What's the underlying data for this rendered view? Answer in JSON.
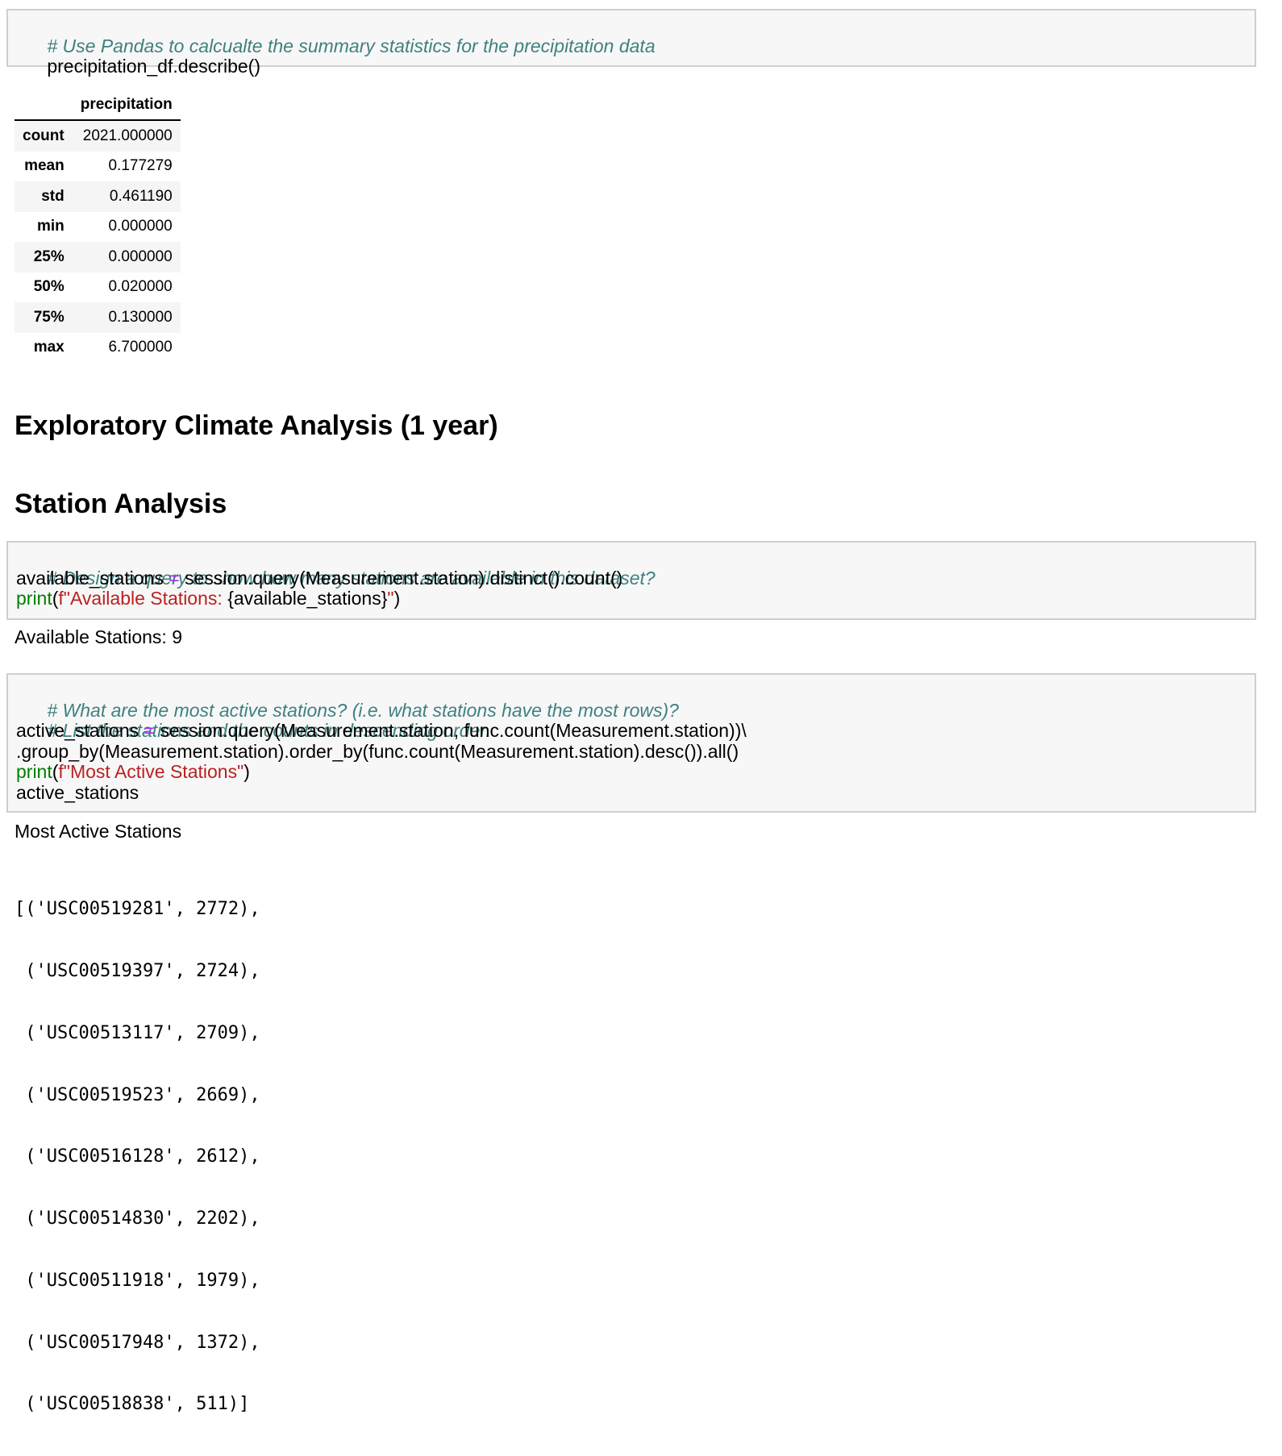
{
  "cell1": {
    "comment": "# Use Pandas to calcualte the summary statistics for the precipitation data",
    "code": "precipitation_df.describe()"
  },
  "describe_table": {
    "column_header": "precipitation",
    "rows": [
      {
        "label": "count",
        "value": "2021.000000"
      },
      {
        "label": "mean",
        "value": "0.177279"
      },
      {
        "label": "std",
        "value": "0.461190"
      },
      {
        "label": "min",
        "value": "0.000000"
      },
      {
        "label": "25%",
        "value": "0.000000"
      },
      {
        "label": "50%",
        "value": "0.020000"
      },
      {
        "label": "75%",
        "value": "0.130000"
      },
      {
        "label": "max",
        "value": "6.700000"
      }
    ]
  },
  "headings": {
    "exploratory": "Exploratory Climate Analysis (1 year)",
    "station": "Station Analysis"
  },
  "cell2": {
    "comment": "# Design a query to show how many stations are available in this dataset?",
    "line2_var": "available_stations",
    "line2_op": "=",
    "line2_rest": "session.query(Measurement.station).distinct().count()",
    "line3_fn": "print",
    "line3_open": "(",
    "line3_str_start": "f\"Available Stations: ",
    "line3_interp": "{available_stations}",
    "line3_str_end": "\"",
    "line3_close": ")",
    "output": "Available Stations: 9"
  },
  "cell3": {
    "comment1": "# What are the most active stations? (i.e. what stations have the most rows)?",
    "comment2": "# List the stations and the counts in descending order.",
    "line3_var": "active_stations",
    "line3_op": "=",
    "line3_rest": "session.query(Measurement.station, func.count(Measurement.station))\\",
    "line4": ".group_by(Measurement.station).order_by(func.count(Measurement.station).desc()).all()",
    "line5_fn": "print",
    "line5_open": "(",
    "line5_str": "f\"Most Active Stations\"",
    "line5_close": ")",
    "line6": "active_stations",
    "output_label": "Most Active Stations",
    "output_list": [
      "[('USC00519281', 2772),",
      " ('USC00519397', 2724),",
      " ('USC00513117', 2709),",
      " ('USC00519523', 2669),",
      " ('USC00516128', 2612),",
      " ('USC00514830', 2202),",
      " ('USC00511918', 1979),",
      " ('USC00517948', 1372),",
      " ('USC00518838', 511)]"
    ]
  }
}
